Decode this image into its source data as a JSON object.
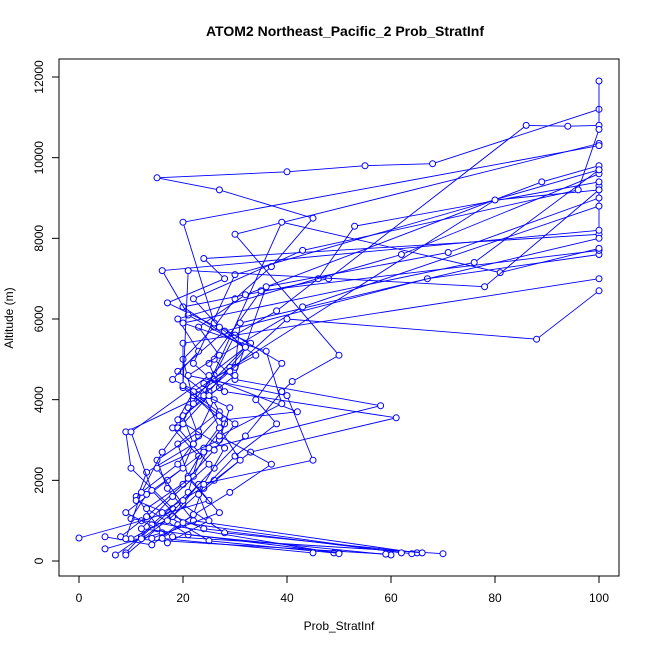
{
  "colors": {
    "series": "#0000ff",
    "axis": "#000000",
    "background": "#ffffff"
  },
  "chart_data": {
    "type": "line",
    "title": "ATOM2 Northeast_Pacific_2 Prob_StratInf",
    "xlabel": "Prob_StratInf",
    "ylabel": "Altitude (m)",
    "xlim": [
      0,
      100
    ],
    "ylim": [
      0,
      12000
    ],
    "xticks": [
      0,
      20,
      40,
      60,
      80,
      100
    ],
    "yticks": [
      0,
      2000,
      4000,
      6000,
      8000,
      10000,
      12000
    ],
    "marker": "open-circle",
    "series": [
      {
        "x": [
          7,
          12,
          18,
          10,
          9,
          22,
          20,
          26,
          30,
          37,
          45,
          27,
          15,
          40,
          55,
          68,
          100
        ],
        "y": [
          150,
          600,
          1300,
          2300,
          3200,
          4000,
          5000,
          5800,
          6500,
          7300,
          8500,
          9200,
          9500,
          9650,
          9800,
          9850,
          11200
        ]
      },
      {
        "x": [
          9,
          14,
          21,
          23,
          18,
          25,
          29,
          33,
          17,
          28,
          24,
          100,
          100
        ],
        "y": [
          200,
          900,
          1700,
          2600,
          3300,
          4200,
          4800,
          5400,
          6400,
          7000,
          7500,
          8100,
          9300
        ]
      },
      {
        "x": [
          0,
          12,
          25,
          21,
          19,
          27,
          24,
          34,
          20,
          48,
          86,
          94,
          100,
          100
        ],
        "y": [
          570,
          1000,
          1500,
          2100,
          2900,
          3700,
          4400,
          5100,
          6300,
          7000,
          10800,
          10780,
          10800,
          11900
        ]
      },
      {
        "x": [
          5,
          16,
          11,
          19,
          23,
          21,
          26,
          30,
          38,
          46,
          53,
          100
        ],
        "y": [
          300,
          700,
          1600,
          2400,
          3100,
          3800,
          4600,
          5600,
          6200,
          7000,
          8300,
          9400
        ]
      },
      {
        "x": [
          8,
          13,
          20,
          24,
          28,
          42,
          26,
          32,
          21,
          16,
          100
        ],
        "y": [
          600,
          1100,
          1900,
          2800,
          3500,
          3700,
          4500,
          5300,
          6100,
          7200,
          8200
        ]
      },
      {
        "x": [
          65,
          22,
          17,
          15,
          23,
          26,
          19,
          28,
          67,
          100
        ],
        "y": [
          200,
          1000,
          1800,
          2500,
          3200,
          4000,
          4700,
          5700,
          7000,
          7600
        ]
      },
      {
        "x": [
          64,
          24,
          11,
          13,
          22,
          20,
          27,
          25,
          35,
          100
        ],
        "y": [
          180,
          800,
          1500,
          2200,
          2900,
          3600,
          4300,
          4900,
          6700,
          7700
        ]
      },
      {
        "x": [
          70,
          18,
          9,
          17,
          24,
          28,
          22,
          30,
          31,
          100
        ],
        "y": [
          180,
          600,
          1200,
          2000,
          2700,
          3400,
          4100,
          4800,
          5900,
          8000
        ]
      },
      {
        "x": [
          66,
          28,
          20,
          15,
          27,
          29,
          18,
          23,
          19,
          62,
          100
        ],
        "y": [
          200,
          700,
          1400,
          2300,
          3000,
          3800,
          4500,
          5200,
          6000,
          7600,
          9600
        ]
      },
      {
        "x": [
          60,
          21,
          13,
          22,
          25,
          58,
          30,
          26,
          43,
          100
        ],
        "y": [
          150,
          650,
          1300,
          2100,
          2800,
          3850,
          4500,
          5000,
          6300,
          8800
        ]
      },
      {
        "x": [
          49,
          25,
          16,
          26,
          33,
          61,
          28,
          22,
          30,
          100
        ],
        "y": [
          200,
          500,
          1200,
          2000,
          2700,
          3550,
          4200,
          4900,
          7100,
          9700
        ]
      },
      {
        "x": [
          59,
          10,
          18,
          23,
          45,
          40,
          21,
          27,
          23,
          32,
          89,
          100
        ],
        "y": [
          170,
          550,
          1100,
          1900,
          2500,
          4100,
          4600,
          5100,
          5800,
          6600,
          9400,
          9800
        ]
      },
      {
        "x": [
          5,
          14,
          19,
          29,
          37,
          27,
          39,
          36,
          20,
          76,
          100
        ],
        "y": [
          600,
          400,
          900,
          1700,
          2400,
          3100,
          3900,
          5200,
          5900,
          7400,
          9700
        ]
      },
      {
        "x": [
          9,
          15,
          20,
          26,
          32,
          39,
          41,
          50,
          30,
          100
        ],
        "y": [
          150,
          800,
          1500,
          2300,
          3100,
          4200,
          4450,
          5100,
          8100,
          10350
        ]
      },
      {
        "x": [
          12,
          17,
          24,
          30,
          38,
          34,
          39,
          26,
          20,
          100
        ],
        "y": [
          550,
          1000,
          1800,
          2600,
          3400,
          4000,
          4900,
          5900,
          8400,
          10300
        ]
      },
      {
        "x": [
          50,
          12,
          18,
          25,
          19,
          22,
          29,
          40,
          88,
          100
        ],
        "y": [
          200,
          800,
          1600,
          2400,
          3300,
          3900,
          4700,
          6000,
          5500,
          6700
        ]
      },
      {
        "x": [
          50,
          10,
          13,
          20,
          22,
          27,
          20,
          20,
          100
        ],
        "y": [
          180,
          1050,
          1650,
          2300,
          2900,
          3600,
          4300,
          5400,
          7000
        ]
      },
      {
        "x": [
          45,
          16,
          22,
          24,
          28,
          19,
          22,
          80,
          100
        ],
        "y": [
          200,
          560,
          1150,
          1900,
          2800,
          3500,
          4200,
          8950,
          9200
        ]
      },
      {
        "x": [
          17,
          25,
          23,
          31,
          27,
          24,
          39,
          81,
          100
        ],
        "y": [
          450,
          1000,
          1650,
          2500,
          3300,
          4100,
          8400,
          7150,
          7750
        ]
      },
      {
        "x": [
          14,
          27,
          21,
          26,
          30,
          20,
          21,
          78,
          100
        ],
        "y": [
          560,
          1200,
          2050,
          2750,
          3400,
          4350,
          7200,
          6800,
          9200
        ]
      },
      {
        "x": [
          9,
          12,
          16,
          20,
          25,
          30,
          36,
          71,
          100
        ],
        "y": [
          550,
          1700,
          2700,
          3400,
          4100,
          4600,
          6800,
          7650,
          9000
        ]
      },
      {
        "x": [
          62,
          20,
          14,
          10,
          25,
          32,
          27,
          22,
          43,
          96,
          100
        ],
        "y": [
          200,
          950,
          1750,
          3200,
          4600,
          5300,
          5800,
          6500,
          7700,
          9200,
          10700
        ]
      }
    ]
  }
}
